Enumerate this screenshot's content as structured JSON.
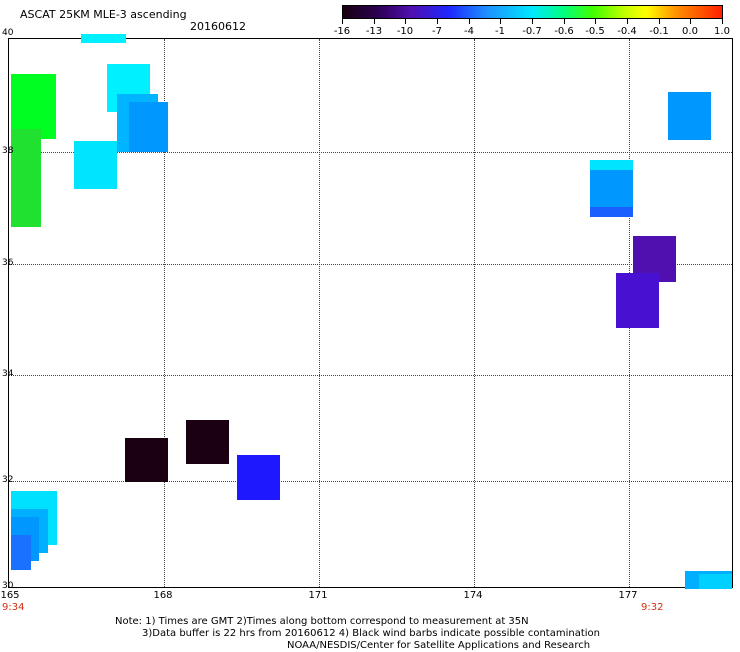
{
  "title": "ASCAT 25KM MLE-3 ascending",
  "date": "20160612",
  "colorbar": {
    "labels": [
      "-16",
      "-13",
      "-10",
      "-7",
      "-4",
      "-1",
      "-0.7",
      "-0.6",
      "-0.5",
      "-0.4",
      "-0.1",
      "0.0",
      "1.0"
    ]
  },
  "axes": {
    "lon_labels": [
      "165",
      "168",
      "171",
      "174",
      "177"
    ],
    "lat_labels": [
      "40",
      "38",
      "36",
      "34",
      "32",
      "30"
    ],
    "lon_range": [
      165,
      179.2
    ],
    "lat_range": [
      30,
      40.0
    ]
  },
  "times": {
    "left": "9:34",
    "right": "9:32"
  },
  "notes": {
    "line1": "Note: 1) Times are GMT 2)Times along bottom correspond to measurement at 35N",
    "line2": "3)Data buffer is 22 hrs from 20160612 4) Black wind barbs indicate possible contamination",
    "line3": "NOAA/NESDIS/Center for Satellite Applications and Research"
  },
  "colors": {
    "c_m16": "#1a0010",
    "c_m13": "#2a0030",
    "c_m10": "#5010c0",
    "c_m7": "#1e30ff",
    "c_m4": "#1a60ff",
    "c_m1": "#0098ff",
    "c_m07": "#00d0ff",
    "c_m06": "#00f0ff",
    "c_m05": "#00ff40",
    "c_m04": "#20e030"
  }
}
